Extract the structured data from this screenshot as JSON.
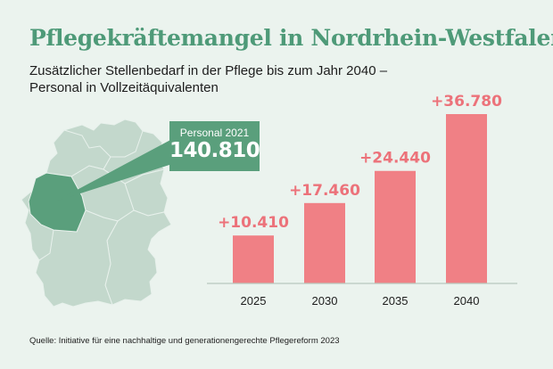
{
  "title": "Pflegekräftemangel in Nordrhein-Westfalen",
  "subtitle_line1": "Zusätzlicher Stellenbedarf in der Pflege bis zum Jahr 2040 –",
  "subtitle_line2": "Personal in Vollzeitäquivalenten",
  "callout": {
    "label": "Personal 2021",
    "value": "140.810"
  },
  "source": "Quelle: Initiative für eine nachhaltige und generationengerechte Pflegereform 2023",
  "colors": {
    "bar": "#f08085",
    "bar_label": "#ec727a",
    "accent": "#5a9f7c",
    "map": "#c3d8cc",
    "map_highlight": "#5a9f7c"
  },
  "chart_data": {
    "type": "bar",
    "categories": [
      "2025",
      "2030",
      "2035",
      "2040"
    ],
    "values": [
      10410,
      17460,
      24440,
      36780
    ],
    "value_labels": [
      "+10.410",
      "+17.460",
      "+24.440",
      "+36.780"
    ],
    "ylim": [
      0,
      36780
    ]
  }
}
